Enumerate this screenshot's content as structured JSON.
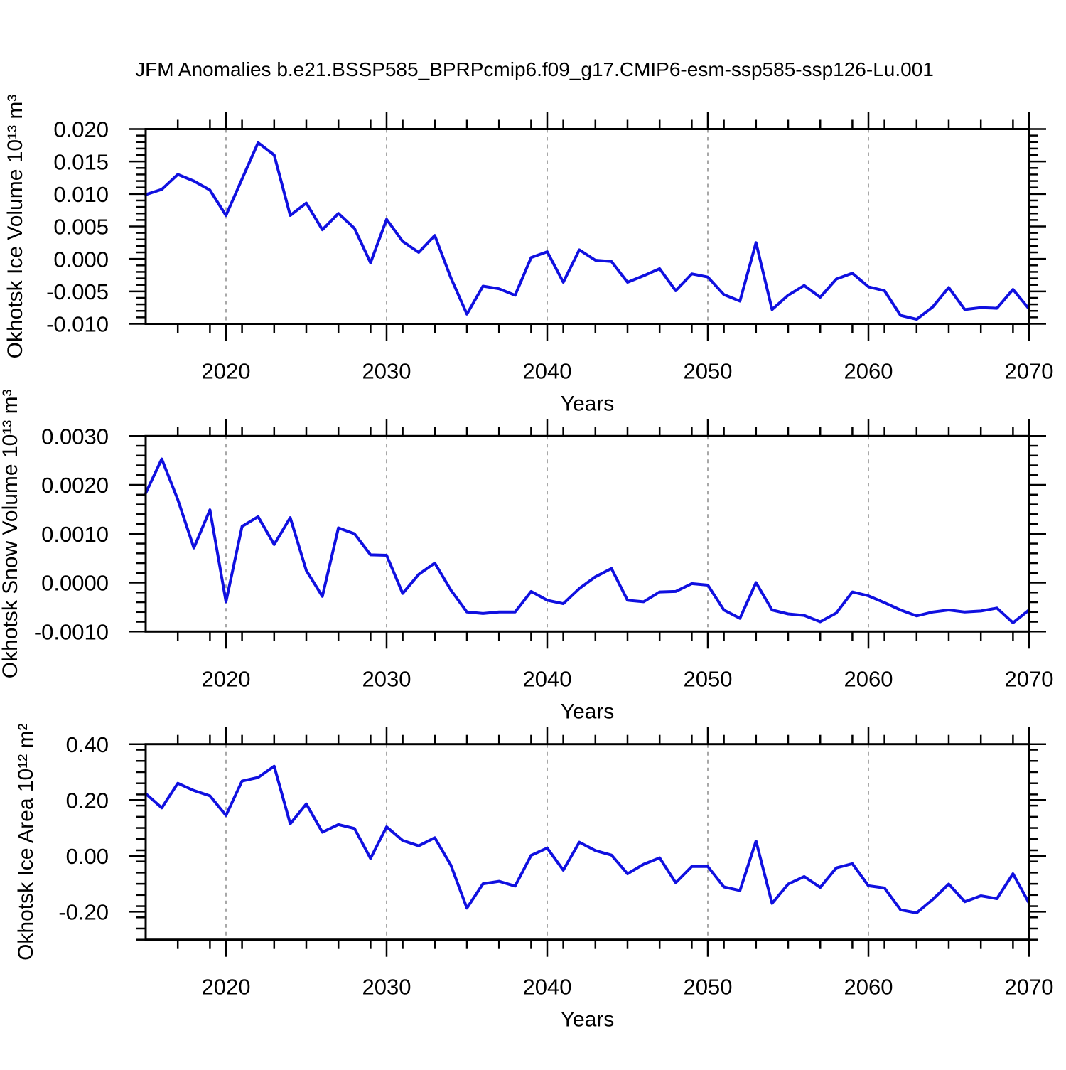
{
  "title": "JFM Anomalies b.e21.BSSP585_BPRPcmip6.f09_g17.CMIP6-esm-ssp585-ssp126-Lu.001",
  "colors": {
    "line": "#1010e0",
    "axis": "#000000",
    "grid": "#8c8c8c",
    "background": "#ffffff"
  },
  "chart_data": [
    {
      "id": "ice-volume",
      "type": "line",
      "title": "",
      "xlabel": "Years",
      "ylabel": "Okhotsk Ice Volume 10¹³ m³",
      "x_start": 2015,
      "x_end": 2070,
      "x_step": 1,
      "xlim": [
        2015,
        2070
      ],
      "xticks": [
        2020,
        2030,
        2040,
        2050,
        2060,
        2070
      ],
      "x_minor_step": 2,
      "grid_years": [
        2020,
        2030,
        2040,
        2050,
        2060
      ],
      "grid_on": "x-dashed",
      "legend": "none",
      "ylim": [
        -0.01,
        0.02
      ],
      "ytick_values": [
        0.02,
        0.015,
        0.01,
        0.005,
        0.0,
        -0.005,
        -0.01
      ],
      "ytick_labels": [
        "0.020",
        "0.015",
        "0.010",
        "0.005",
        "0.000",
        "-0.005",
        "-0.010"
      ],
      "y_minor_step": 0.001,
      "values": [
        0.0099,
        0.0107,
        0.013,
        0.012,
        0.0106,
        0.0067,
        0.0123,
        0.0179,
        0.016,
        0.0067,
        0.0086,
        0.0045,
        0.007,
        0.0047,
        -0.0006,
        0.0061,
        0.0027,
        0.001,
        0.0036,
        -0.0029,
        -0.0085,
        -0.0042,
        -0.0046,
        -0.0056,
        0.0002,
        0.0011,
        -0.0036,
        0.0014,
        -0.0002,
        -0.0004,
        -0.0036,
        -0.0026,
        -0.0015,
        -0.0049,
        -0.0023,
        -0.0028,
        -0.0055,
        -0.0065,
        0.0025,
        -0.0078,
        -0.0056,
        -0.0041,
        -0.0059,
        -0.0031,
        -0.0022,
        -0.0043,
        -0.0049,
        -0.0087,
        -0.0093,
        -0.0074,
        -0.0044,
        -0.0078,
        -0.0075,
        -0.0076,
        -0.0047,
        -0.0077
      ]
    },
    {
      "id": "snow-volume",
      "type": "line",
      "title": "",
      "xlabel": "Years",
      "ylabel": "Okhotsk Snow Volume 10¹³ m³",
      "x_start": 2015,
      "x_end": 2070,
      "x_step": 1,
      "xlim": [
        2015,
        2070
      ],
      "xticks": [
        2020,
        2030,
        2040,
        2050,
        2060,
        2070
      ],
      "x_minor_step": 2,
      "grid_years": [
        2020,
        2030,
        2040,
        2050,
        2060
      ],
      "grid_on": "x-dashed",
      "legend": "none",
      "ylim": [
        -0.001,
        0.003
      ],
      "ytick_values": [
        0.003,
        0.002,
        0.001,
        0.0,
        -0.001
      ],
      "ytick_labels": [
        "0.0030",
        "0.0020",
        "0.0010",
        "0.0000",
        "-0.0010"
      ],
      "y_minor_step": 0.0002,
      "values": [
        0.00183,
        0.00253,
        0.0017,
        0.00071,
        0.00149,
        -0.00039,
        0.00115,
        0.00135,
        0.00078,
        0.00133,
        0.00025,
        -0.00028,
        0.00112,
        0.001,
        0.00057,
        0.00056,
        -0.00022,
        0.00017,
        0.0004,
        -0.00015,
        -0.0006,
        -0.00063,
        -0.0006,
        -0.0006,
        -0.00018,
        -0.00036,
        -0.00043,
        -0.00012,
        0.00012,
        0.00029,
        -0.00036,
        -0.00039,
        -0.00019,
        -0.00018,
        -2e-05,
        -5e-05,
        -0.00056,
        -0.00073,
        0.0,
        -0.00056,
        -0.00064,
        -0.00067,
        -0.0008,
        -0.00062,
        -0.00019,
        -0.00027,
        -0.00041,
        -0.00056,
        -0.00068,
        -0.0006,
        -0.00056,
        -0.0006,
        -0.00058,
        -0.00052,
        -0.00082,
        -0.00056
      ]
    },
    {
      "id": "ice-area",
      "type": "line",
      "title": "",
      "xlabel": "Years",
      "ylabel": "Okhotsk Ice Area 10¹² m²",
      "x_start": 2015,
      "x_end": 2070,
      "x_step": 1,
      "xlim": [
        2015,
        2070
      ],
      "xticks": [
        2020,
        2030,
        2040,
        2050,
        2060,
        2070
      ],
      "x_minor_step": 2,
      "grid_years": [
        2020,
        2030,
        2040,
        2050,
        2060
      ],
      "grid_on": "x-dashed",
      "legend": "none",
      "ylim": [
        -0.3,
        0.4
      ],
      "ytick_values": [
        0.4,
        0.2,
        0.0,
        -0.2
      ],
      "ytick_labels": [
        "0.40",
        "0.20",
        "0.00",
        "-0.20"
      ],
      "y_minor_step": 0.04,
      "values": [
        0.223,
        0.172,
        0.26,
        0.234,
        0.215,
        0.145,
        0.268,
        0.281,
        0.321,
        0.115,
        0.186,
        0.085,
        0.112,
        0.098,
        -0.009,
        0.104,
        0.055,
        0.036,
        0.065,
        -0.033,
        -0.187,
        -0.1,
        -0.091,
        -0.108,
        0.002,
        0.028,
        -0.051,
        0.049,
        0.019,
        0.003,
        -0.064,
        -0.03,
        -0.007,
        -0.096,
        -0.038,
        -0.038,
        -0.111,
        -0.124,
        0.053,
        -0.17,
        -0.101,
        -0.074,
        -0.113,
        -0.043,
        -0.028,
        -0.107,
        -0.115,
        -0.193,
        -0.204,
        -0.156,
        -0.101,
        -0.164,
        -0.143,
        -0.153,
        -0.064,
        -0.169
      ]
    }
  ]
}
